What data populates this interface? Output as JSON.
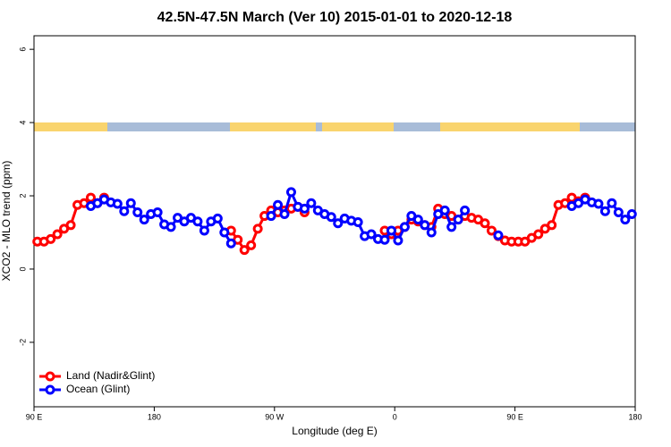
{
  "chart_data": {
    "type": "line",
    "title": "42.5N-47.5N March (Ver 10)   2015-01-01 to 2020-12-18",
    "xlabel": "Longitude (deg E)",
    "ylabel": "XCO2 - MLO trend (ppm)",
    "x": [
      92.5,
      97.5,
      102.5,
      107.5,
      112.5,
      117.5,
      122.5,
      127.5,
      132.5,
      137.5,
      142.5,
      147.5,
      152.5,
      157.5,
      162.5,
      167.5,
      172.5,
      177.5,
      182.5,
      187.5,
      192.5,
      197.5,
      202.5,
      207.5,
      212.5,
      217.5,
      222.5,
      227.5,
      232.5,
      237.5,
      242.5,
      247.5,
      252.5,
      257.5,
      262.5,
      267.5,
      272.5,
      277.5,
      282.5,
      287.5,
      292.5,
      297.5,
      302.5,
      307.5,
      312.5,
      317.5,
      322.5,
      327.5,
      332.5,
      337.5,
      342.5,
      347.5,
      352.5,
      357.5,
      362.5,
      367.5,
      372.5,
      377.5,
      382.5,
      387.5,
      392.5,
      397.5,
      402.5,
      407.5,
      412.5,
      417.5,
      422.5,
      427.5,
      432.5,
      437.5,
      442.5,
      447.5,
      452.5,
      457.5,
      462.5,
      467.5,
      472.5,
      477.5,
      482.5,
      487.5,
      492.5,
      497.5,
      502.5,
      507.5,
      512.5,
      517.5,
      522.5,
      527.5,
      532.5,
      537.5
    ],
    "series": [
      {
        "name": "Land (Nadir&Glint)",
        "color": "#ff0000",
        "values": [
          0.75,
          0.75,
          0.82,
          0.95,
          1.1,
          1.2,
          1.75,
          1.8,
          1.95,
          1.8,
          1.95,
          null,
          null,
          null,
          null,
          null,
          null,
          null,
          null,
          null,
          null,
          null,
          null,
          null,
          null,
          null,
          null,
          null,
          null,
          1.05,
          0.8,
          0.52,
          0.65,
          1.1,
          1.45,
          1.6,
          1.55,
          1.6,
          1.65,
          1.7,
          1.55,
          null,
          null,
          null,
          null,
          null,
          null,
          null,
          null,
          null,
          null,
          null,
          1.05,
          0.95,
          1.05,
          1.15,
          1.35,
          1.3,
          1.2,
          1.15,
          1.65,
          1.5,
          1.45,
          1.35,
          1.45,
          1.4,
          1.35,
          1.25,
          1.05,
          0.9,
          0.78,
          0.75,
          0.75,
          0.75,
          0.85,
          0.95,
          1.1,
          1.2,
          1.75,
          1.8,
          1.95,
          1.85,
          1.95,
          null,
          null,
          null,
          null,
          null,
          null,
          null
        ]
      },
      {
        "name": "Ocean (Glint)",
        "color": "#0000ff",
        "values": [
          null,
          null,
          null,
          null,
          null,
          null,
          null,
          null,
          1.72,
          1.8,
          1.9,
          1.82,
          1.78,
          1.58,
          1.8,
          1.55,
          1.35,
          1.5,
          1.55,
          1.22,
          1.15,
          1.4,
          1.3,
          1.4,
          1.3,
          1.05,
          1.3,
          1.38,
          1.0,
          0.7,
          null,
          null,
          null,
          null,
          null,
          1.45,
          1.75,
          1.5,
          2.1,
          1.7,
          1.65,
          1.8,
          1.6,
          1.5,
          1.42,
          1.25,
          1.38,
          1.32,
          1.28,
          0.9,
          0.95,
          0.82,
          0.8,
          1.05,
          0.78,
          1.15,
          1.45,
          1.35,
          1.2,
          1.0,
          1.5,
          1.6,
          1.15,
          1.35,
          1.6,
          null,
          null,
          null,
          null,
          0.92,
          null,
          null,
          null,
          null,
          null,
          null,
          null,
          null,
          null,
          null,
          1.72,
          1.8,
          1.9,
          1.82,
          1.78,
          1.58,
          1.8,
          1.55,
          1.35,
          1.5
        ]
      }
    ],
    "xlim": [
      90,
      540
    ],
    "xticks": [
      {
        "value": 90,
        "label": "90 E"
      },
      180,
      {
        "value": 270,
        "label": "90 W"
      },
      {
        "value": 360,
        "label": "0"
      },
      {
        "value": 450,
        "label": "90 E"
      },
      {
        "value": 540,
        "label": "180"
      }
    ],
    "ylim": [
      -3.76,
      6.37
    ],
    "yticks": [
      -2,
      0,
      2,
      4,
      6
    ],
    "legend": "bottom left"
  }
}
